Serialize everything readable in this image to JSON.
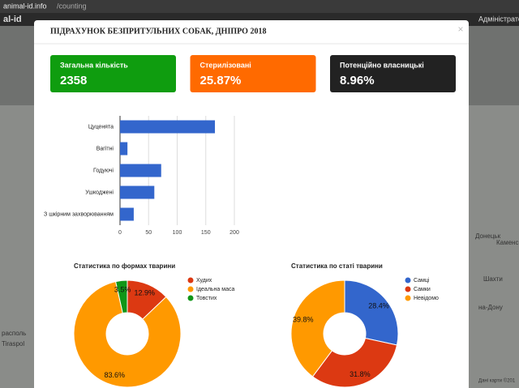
{
  "browser": {
    "host": "animal-id.info",
    "path": "/counting"
  },
  "nav": {
    "brand": "al-id",
    "user": "Адміністратор"
  },
  "map_labels": [
    "Шахти",
    "на-Дону",
    "Каменск",
    "Донецьк",
    "Tiraspol",
    "располь",
    "Дані карти ©201"
  ],
  "modal": {
    "title": "ПІДРАХУНОК БЕЗПРИТУЛЬНИХ СОБАК, ДНІПРО 2018",
    "close": "×"
  },
  "cards": [
    {
      "label": "Загальна кількість",
      "value": "2358",
      "color": "#0f9d0f"
    },
    {
      "label": "Стерилізовані",
      "value": "25.87%",
      "color": "#ff6a00"
    },
    {
      "label": "Потенційно власницькі",
      "value": "8.96%",
      "color": "#222222"
    }
  ],
  "chart_data": [
    {
      "type": "bar",
      "orientation": "horizontal",
      "categories": [
        "Цуценята",
        "Вагітні",
        "Годуючі",
        "Ушкоджені",
        "З шкірним захворюванням"
      ],
      "values": [
        166,
        13,
        72,
        60,
        24
      ],
      "color": "#3366cc",
      "xlim": [
        0,
        200
      ],
      "xticks": [
        0,
        50,
        100,
        150,
        200
      ],
      "grid": true
    },
    {
      "type": "pie",
      "donut": true,
      "title": "Статистика по формах тварини",
      "categories": [
        "Худих",
        "Ідеальна маса",
        "Товстих"
      ],
      "values": [
        12.9,
        83.6,
        3.5
      ],
      "value_labels": [
        "12.9%",
        "83.6%",
        "3.5%"
      ],
      "colors": [
        "#dc3912",
        "#ff9900",
        "#109618"
      ],
      "legend": "right"
    },
    {
      "type": "pie",
      "donut": true,
      "title": "Статистика по статі тварини",
      "categories": [
        "Самці",
        "Самки",
        "Невідомо"
      ],
      "values": [
        28.4,
        31.8,
        39.8
      ],
      "value_labels": [
        "28.4%",
        "31.8%",
        "39.8%"
      ],
      "colors": [
        "#3366cc",
        "#dc3912",
        "#ff9900"
      ],
      "legend": "right"
    }
  ]
}
